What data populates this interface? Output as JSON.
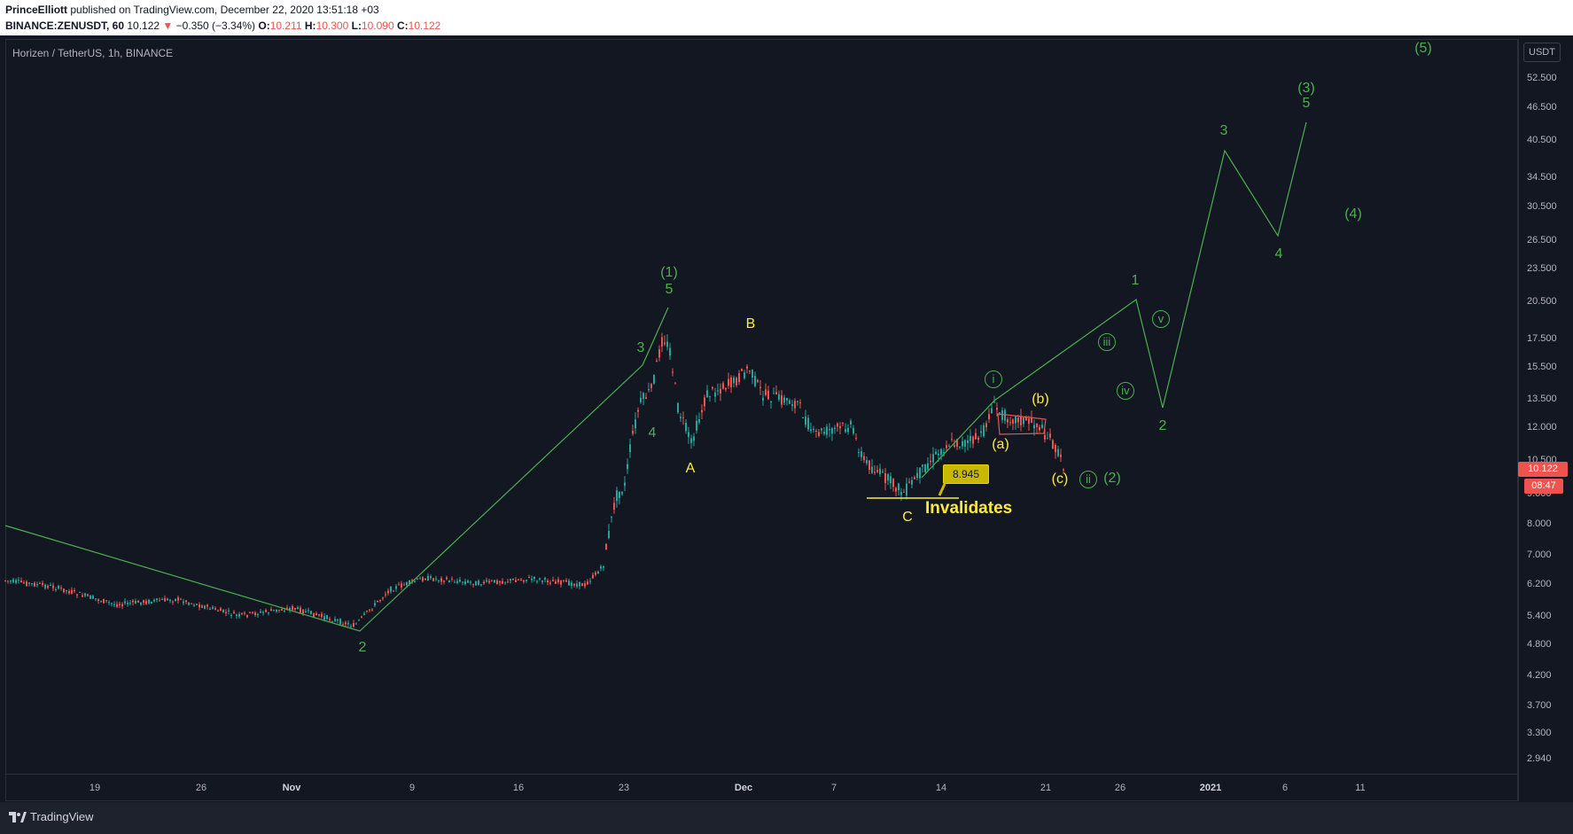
{
  "header": {
    "publisher": "PrinceElliott",
    "published_text": "published on TradingView.com, December 22, 2020 13:51:18 +03",
    "symbol": "BINANCE:ZENUSDT, 60",
    "last": "10.122",
    "change_arrow": "▼",
    "change": "−0.350 (−3.34%)",
    "o_label": "O:",
    "o_value": "10.211",
    "h_label": "H:",
    "h_value": "10.300",
    "l_label": "L:",
    "l_value": "10.090",
    "c_label": "C:",
    "c_value": "10.122"
  },
  "pane": {
    "title": "Horizen / TetherUS, 1h, BINANCE",
    "currency": "USDT"
  },
  "price_axis": [
    "52.500",
    "46.500",
    "40.500",
    "34.500",
    "30.500",
    "26.500",
    "23.500",
    "20.500",
    "17.500",
    "15.500",
    "13.500",
    "12.000",
    "10.500",
    "9.000",
    "8.000",
    "7.000",
    "6.200",
    "5.400",
    "4.800",
    "4.200",
    "3.700",
    "3.300",
    "2.940"
  ],
  "current_price": "10.122",
  "countdown": "08:47",
  "time_axis": [
    "19",
    "26",
    "Nov",
    "9",
    "16",
    "23",
    "Dec",
    "7",
    "14",
    "21",
    "26",
    "2021",
    "6",
    "11"
  ],
  "annotations": {
    "wave_labels": [
      "2",
      "3",
      "4",
      "(1)",
      "5",
      "A",
      "B",
      "C",
      "(a)",
      "(b)",
      "(c)",
      "(2)",
      "1",
      "2",
      "3",
      "4",
      "(3)",
      "5",
      "(4)",
      "(5)"
    ],
    "circled": [
      "i",
      "ii",
      "iii",
      "iv",
      "v"
    ],
    "callout_price": "8.945",
    "invalidates": "Invalidates"
  },
  "colors": {
    "background": "#131722",
    "wave_green": "#4caf50",
    "abc_yellow": "#ffeb3b",
    "up_candle": "#26a69a",
    "down_candle": "#ef5350"
  },
  "footer": {
    "brand": "TradingView"
  }
}
